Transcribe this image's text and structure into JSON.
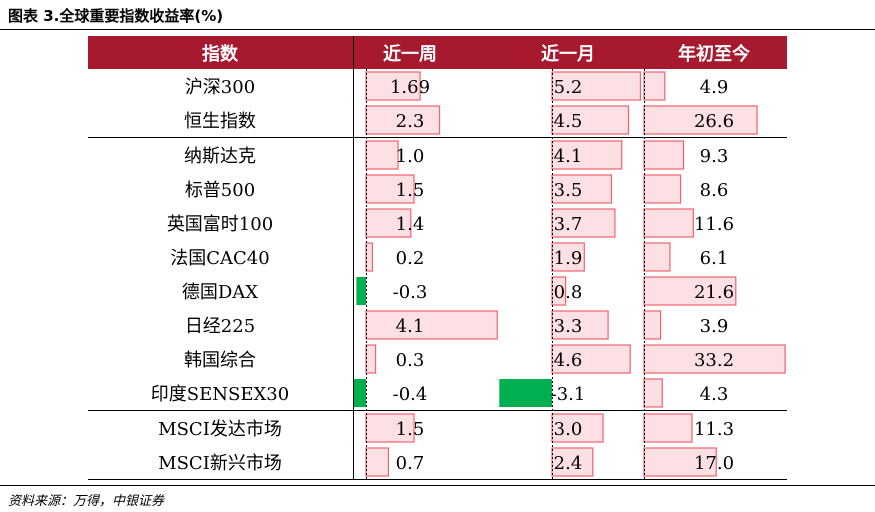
{
  "title": "图表 3.全球重要指数收益率(%)",
  "source": "资料来源：万得，中银证券",
  "colors": {
    "header_bg": "#a6192e",
    "bar_positive_fill": "#fde0e4",
    "bar_positive_stroke": "#f2616f",
    "bar_negative": "#00b050"
  },
  "chart_data": {
    "type": "table",
    "columns": [
      "指数",
      "近一周",
      "近一月",
      "年初至今"
    ],
    "groups": [
      [
        {
          "name": "沪深300",
          "week": 1.69,
          "month": 5.2,
          "ytd": 4.9
        },
        {
          "name": "恒生指数",
          "week": 2.3,
          "month": 4.5,
          "ytd": 26.6
        }
      ],
      [
        {
          "name": "纳斯达克",
          "week": 1.0,
          "month": 4.1,
          "ytd": 9.3
        },
        {
          "name": "标普500",
          "week": 1.5,
          "month": 3.5,
          "ytd": 8.6
        },
        {
          "name": "英国富时100",
          "week": 1.4,
          "month": 3.7,
          "ytd": 11.6
        },
        {
          "name": "法国CAC40",
          "week": 0.2,
          "month": 1.9,
          "ytd": 6.1
        },
        {
          "name": "德国DAX",
          "week": -0.3,
          "month": 0.8,
          "ytd": 21.6
        },
        {
          "name": "日经225",
          "week": 4.1,
          "month": 3.3,
          "ytd": 3.9
        },
        {
          "name": "韩国综合",
          "week": 0.3,
          "month": 4.6,
          "ytd": 33.2
        },
        {
          "name": "印度SENSEX30",
          "week": -0.4,
          "month": -3.1,
          "ytd": 4.3
        }
      ],
      [
        {
          "name": "MSCI发达市场",
          "week": 1.5,
          "month": 3.0,
          "ytd": 11.3
        },
        {
          "name": "MSCI新兴市场",
          "week": 0.7,
          "month": 2.4,
          "ytd": 17.0
        }
      ]
    ],
    "display": {
      "week": [
        "1.69",
        "2.3",
        "1.0",
        "1.5",
        "1.4",
        "0.2",
        "-0.3",
        "4.1",
        "0.3",
        "-0.4",
        "1.5",
        "0.7"
      ],
      "month": [
        "5.2",
        "4.5",
        "4.1",
        "3.5",
        "3.7",
        "1.9",
        "0.8",
        "3.3",
        "4.6",
        "-3.1",
        "3.0",
        "2.4"
      ],
      "ytd": [
        "4.9",
        "26.6",
        "9.3",
        "8.6",
        "11.6",
        "6.1",
        "21.6",
        "3.9",
        "33.2",
        "4.3",
        "11.3",
        "17.0"
      ]
    }
  }
}
